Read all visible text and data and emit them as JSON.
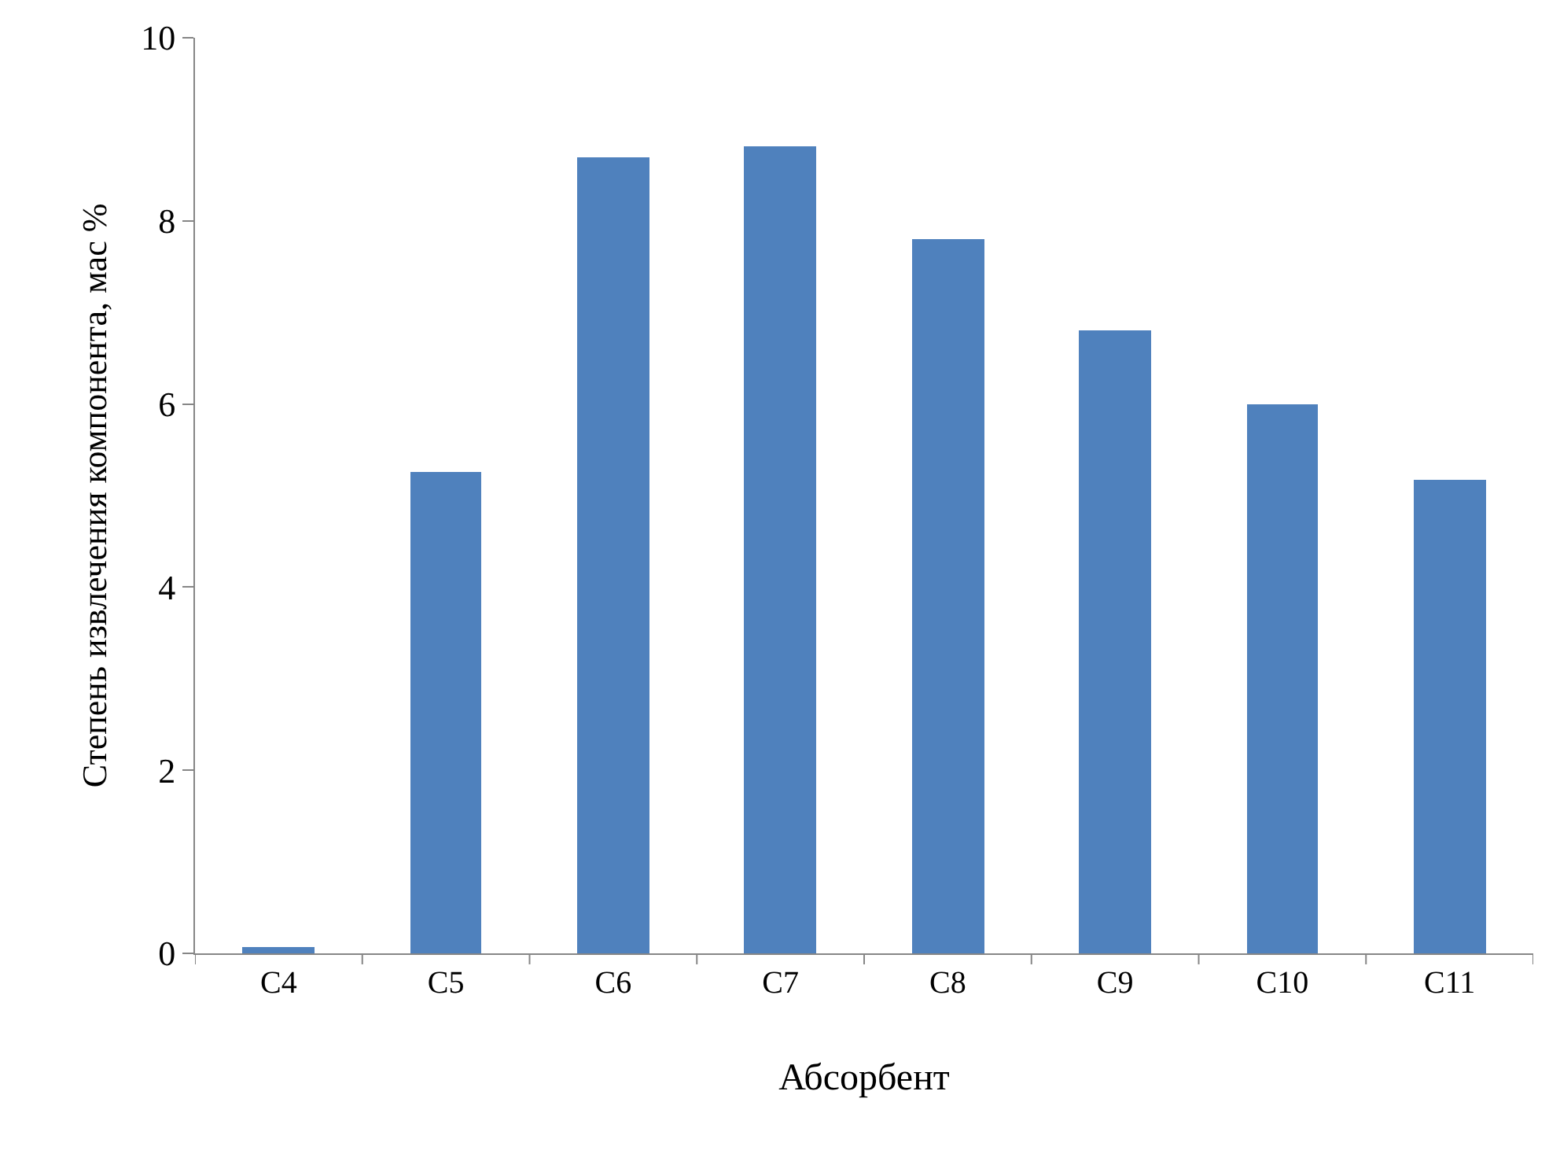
{
  "chart_data": {
    "type": "bar",
    "xlabel": "Абсорбент",
    "ylabel": "Степень извлечения компонента, мас %",
    "categories": [
      "C4",
      "C5",
      "C6",
      "C7",
      "C8",
      "C9",
      "C10",
      "C11"
    ],
    "values": [
      0.07,
      5.26,
      8.69,
      8.81,
      7.8,
      6.8,
      6.0,
      5.17
    ],
    "color": "#4f81bd",
    "ylim": [
      0,
      10
    ],
    "yticks": [
      0,
      2,
      4,
      6,
      8,
      10
    ]
  }
}
